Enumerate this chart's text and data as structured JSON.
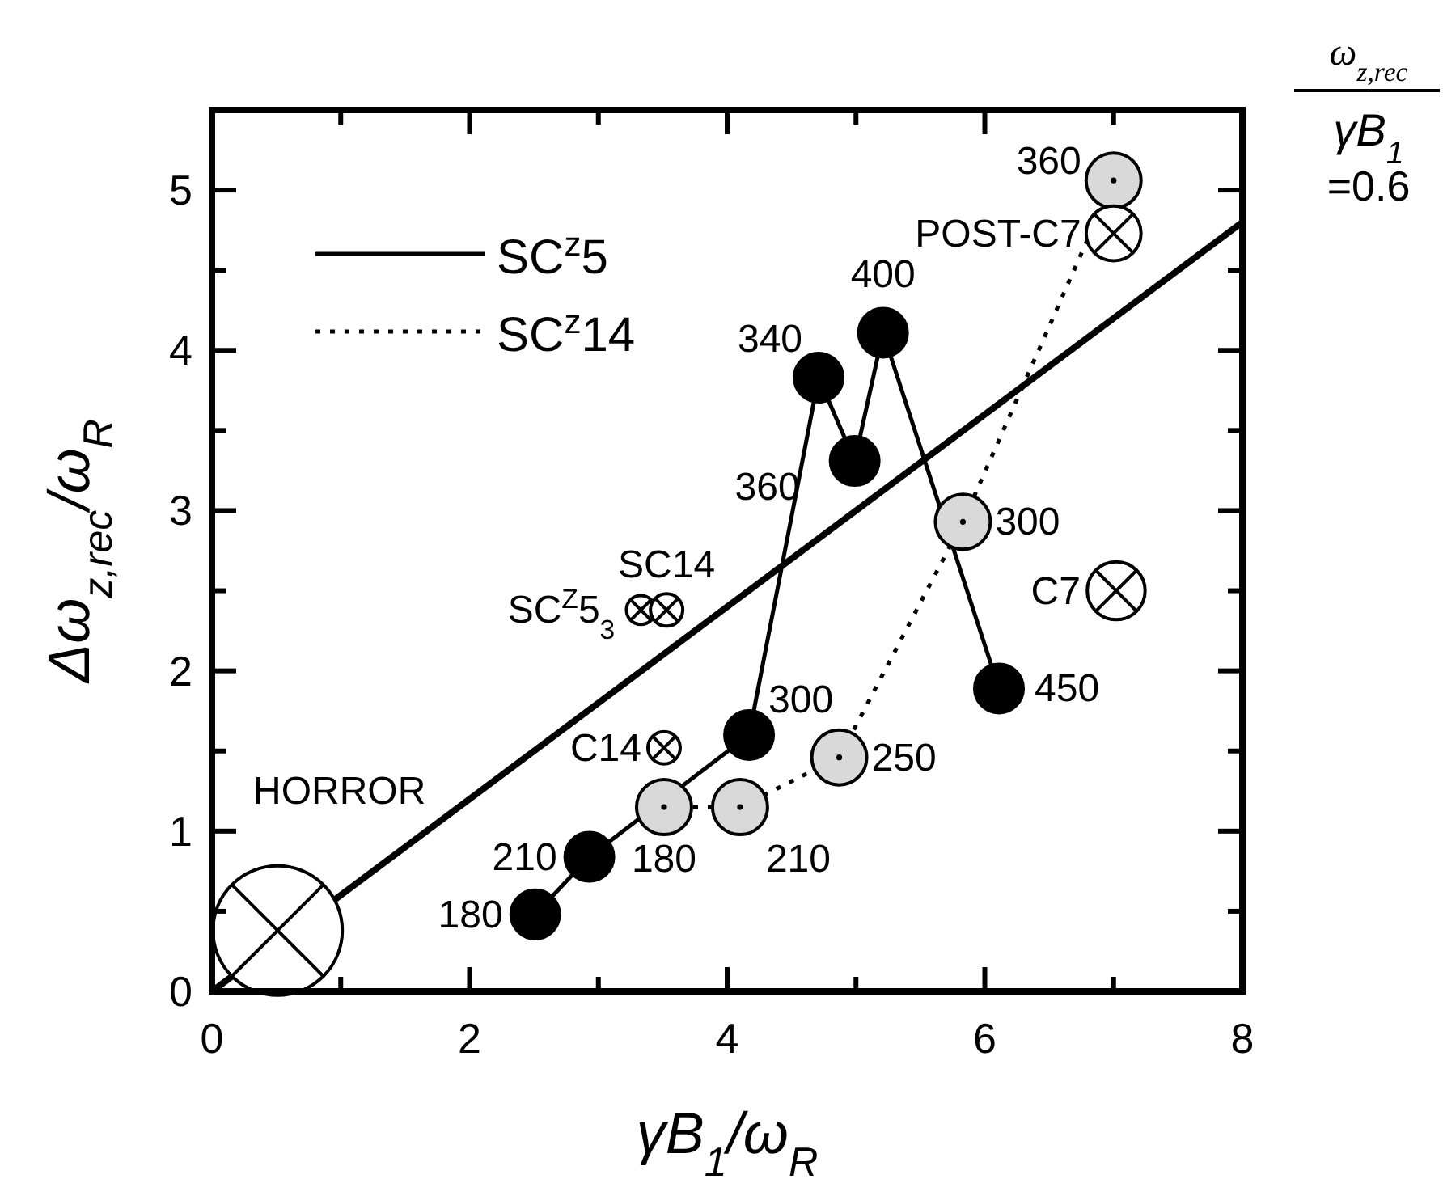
{
  "chart_data": {
    "type": "line",
    "xlabel": "γB$_{1}$/ω$_{R}$",
    "ylabel": "Δω$_{z,rec}$/ω$_{R}$",
    "xlim": [
      0,
      8
    ],
    "ylim": [
      0,
      5.5
    ],
    "xticks": [
      0,
      {
        "value": 1,
        "label": null
      },
      2,
      {
        "value": 3,
        "label": null
      },
      4,
      {
        "value": 5,
        "label": null
      },
      6,
      {
        "value": 7,
        "label": null
      },
      8
    ],
    "yticks": [
      0,
      {
        "value": 0.5,
        "label": null
      },
      1,
      {
        "value": 1.5,
        "label": null
      },
      2,
      {
        "value": 2.5,
        "label": null
      },
      3,
      {
        "value": 3.5,
        "label": null
      },
      4,
      {
        "value": 4.5,
        "label": null
      },
      5
    ],
    "legend": "top left",
    "grid": false,
    "series": [
      {
        "name": "SC$^{z}$5",
        "color": "#000000",
        "line_style": "solid",
        "marker": "circle",
        "x": [
          2.51,
          2.93,
          4.17,
          4.71,
          4.99,
          5.21,
          6.11
        ],
        "values": [
          0.48,
          0.84,
          1.6,
          3.83,
          3.31,
          4.11,
          1.89
        ]
      },
      {
        "name": "SC$^{z}$14",
        "color": "#d9d9d9",
        "line_style": "dotted",
        "marker": "circle",
        "x": [
          3.51,
          4.1,
          4.87,
          5.83,
          7.0
        ],
        "values": [
          1.15,
          1.15,
          1.46,
          2.93,
          5.06
        ]
      },
      {
        "type": "bubble",
        "color": "#ffffff",
        "x": [
          0.51,
          3.51,
          3.33,
          3.53,
          7.02,
          7.0
        ],
        "values": [
          0.38,
          1.52,
          2.38,
          2.38,
          2.5,
          4.73
        ],
        "sizes": [
          1,
          0.0625,
          0.05,
          0.0625,
          0.2,
          0.18
        ]
      },
      {
        "color": "#000000",
        "line_style": "solid",
        "marker": "none",
        "x": [
          0,
          8
        ],
        "values": [
          0,
          4.8
        ]
      }
    ],
    "annotations": [
      "ω$_{z,rec}$",
      "γB$_{1}$",
      "=0.6",
      {
        "text": "180",
        "x": 2.51,
        "y": 0.48
      },
      {
        "text": "210",
        "x": 2.93,
        "y": 0.84
      },
      {
        "text": "300",
        "x": 4.17,
        "y": 1.6
      },
      {
        "text": "340",
        "x": 4.71,
        "y": 3.83
      },
      {
        "text": "360",
        "x": 4.99,
        "y": 3.31
      },
      {
        "text": "400",
        "x": 5.21,
        "y": 4.11
      },
      {
        "text": "450",
        "x": 6.11,
        "y": 1.89
      },
      {
        "text": "180",
        "x": 3.51,
        "y": 1.15
      },
      {
        "text": "210",
        "x": 4.1,
        "y": 1.15
      },
      {
        "text": "250",
        "x": 4.87,
        "y": 1.46
      },
      {
        "text": "300",
        "x": 5.83,
        "y": 2.93
      },
      {
        "text": "360",
        "x": 7.0,
        "y": 5.06
      },
      "HORROR",
      {
        "text": "C14",
        "x": 3.51,
        "y": 1.52
      },
      {
        "text": "SC$^{Z}$5$_{3}$",
        "x": 3.33,
        "y": 2.38
      },
      {
        "text": "SC14",
        "x": 3.53,
        "y": 2.38
      },
      {
        "text": "C7",
        "x": 7.02,
        "y": 2.5
      },
      {
        "text": "POST-C7",
        "x": 7.0,
        "y": 4.73
      }
    ]
  }
}
